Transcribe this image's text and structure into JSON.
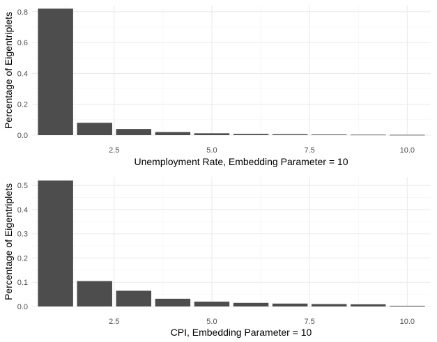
{
  "chart_data": [
    {
      "type": "bar",
      "x": [
        1,
        2,
        3,
        4,
        5,
        6,
        7,
        8,
        9,
        10
      ],
      "values": [
        0.82,
        0.08,
        0.04,
        0.02,
        0.012,
        0.008,
        0.006,
        0.004,
        0.003,
        0.002
      ],
      "xlabel": "Unemployment Rate, Embedding Parameter =  10",
      "ylabel": "Percentage of Eigentriplets",
      "xlim": [
        0.4,
        10.6
      ],
      "ylim": [
        0,
        0.84
      ],
      "xticks": [
        2.5,
        5.0,
        7.5,
        10.0
      ],
      "xtick_labels": [
        "2.5",
        "5.0",
        "7.5",
        "10.0"
      ],
      "yticks": [
        0,
        0.2,
        0.4,
        0.6,
        0.8
      ],
      "ytick_labels": [
        "0.0",
        "0.2",
        "0.4",
        "0.6",
        "0.8"
      ],
      "grid": true,
      "bar_color": "#4d4d4d",
      "grid_color": "#ebebeb"
    },
    {
      "type": "bar",
      "x": [
        1,
        2,
        3,
        4,
        5,
        6,
        7,
        8,
        9,
        10
      ],
      "values": [
        0.52,
        0.105,
        0.065,
        0.032,
        0.02,
        0.015,
        0.012,
        0.01,
        0.009,
        0.003
      ],
      "xlabel": "CPI, Embedding Parameter =  10",
      "ylabel": "Percentage of Eigentriplets",
      "xlim": [
        0.4,
        10.6
      ],
      "ylim": [
        0,
        0.535
      ],
      "xticks": [
        2.5,
        5.0,
        7.5,
        10.0
      ],
      "xtick_labels": [
        "2.5",
        "5.0",
        "7.5",
        "10.0"
      ],
      "yticks": [
        0,
        0.1,
        0.2,
        0.3,
        0.4,
        0.5
      ],
      "ytick_labels": [
        "0.0",
        "0.1",
        "0.2",
        "0.3",
        "0.4",
        "0.5"
      ],
      "grid": true,
      "bar_color": "#4d4d4d",
      "grid_color": "#ebebeb"
    }
  ]
}
